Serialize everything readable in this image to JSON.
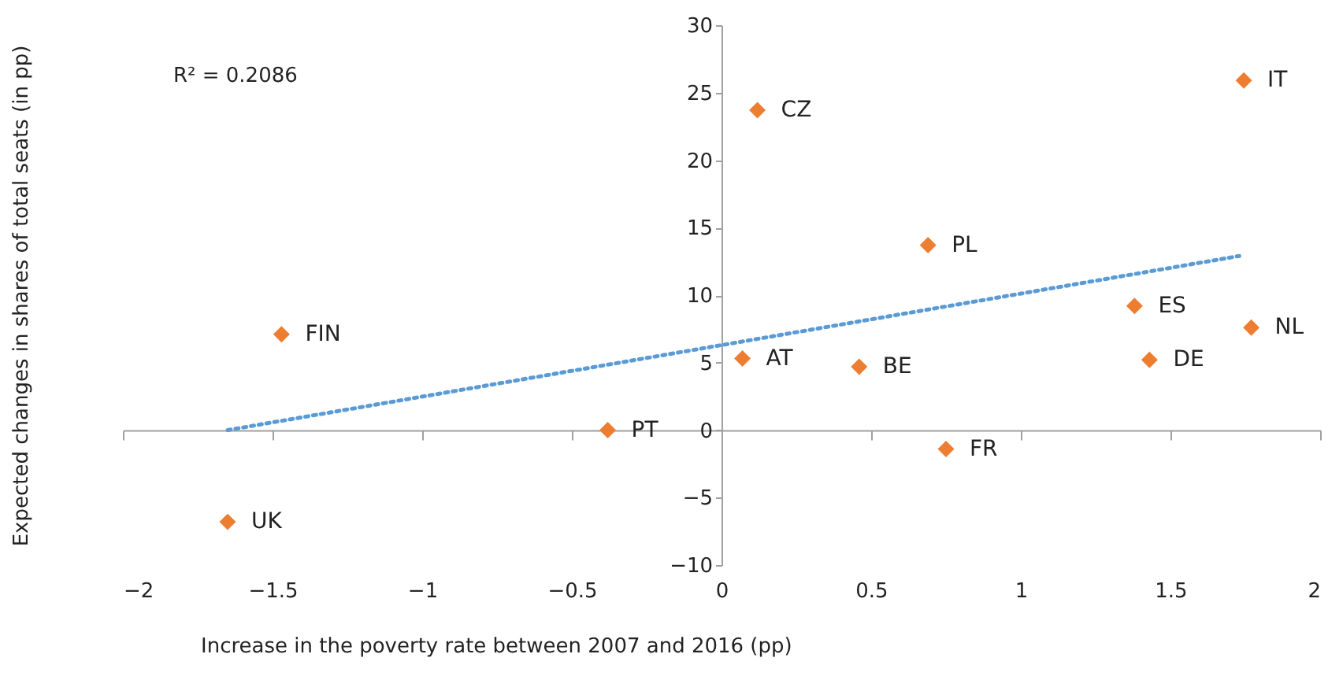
{
  "chart_data": {
    "type": "scatter",
    "xlabel": "Increase in the poverty rate between 2007 and 2016 (pp)",
    "ylabel": "Expected changes in shares of total seats (in pp)",
    "xlim": [
      -2,
      2
    ],
    "xticks": [
      -2,
      -1.5,
      -1,
      -0.5,
      0,
      0.5,
      1,
      1.5,
      2
    ],
    "ylim": [
      -10,
      30
    ],
    "yticks": [
      -10,
      -5,
      0,
      5,
      10,
      15,
      20,
      25,
      30
    ],
    "series": [
      {
        "marker": "diamond",
        "color": "#ed7d31",
        "x": [
          1.745,
          0.12,
          0.69,
          1.38,
          1.77,
          1.43,
          0.07,
          0.46,
          0.75,
          -1.47,
          -0.38,
          -1.65
        ],
        "values": [
          25.9,
          23.7,
          13.7,
          9.2,
          7.6,
          5.2,
          5.3,
          4.7,
          -1.4,
          7.1,
          0,
          -6.8
        ]
      },
      {
        "type": "line",
        "color": "#5b9bd5",
        "line_style": "dotted",
        "x": [
          -1.65,
          1.73
        ],
        "values": [
          0,
          12.9
        ]
      }
    ],
    "annotations": [
      "R² = 0.2086",
      {
        "text": "IT",
        "x": 1.745,
        "y": 25.9
      },
      {
        "text": "CZ",
        "x": 0.12,
        "y": 23.7
      },
      {
        "text": "PL",
        "x": 0.69,
        "y": 13.7
      },
      {
        "text": "ES",
        "x": 1.38,
        "y": 9.2
      },
      {
        "text": "NL",
        "x": 1.77,
        "y": 7.6
      },
      {
        "text": "DE",
        "x": 1.43,
        "y": 5.2
      },
      {
        "text": "AT",
        "x": 0.07,
        "y": 5.3
      },
      {
        "text": "BE",
        "x": 0.46,
        "y": 4.7
      },
      {
        "text": "FR",
        "x": 0.75,
        "y": -1.4
      },
      {
        "text": "FIN",
        "x": -1.47,
        "y": 7.1
      },
      {
        "text": "PT",
        "x": -0.38,
        "y": 0
      },
      {
        "text": "UK",
        "x": -1.65,
        "y": -6.8
      }
    ]
  }
}
